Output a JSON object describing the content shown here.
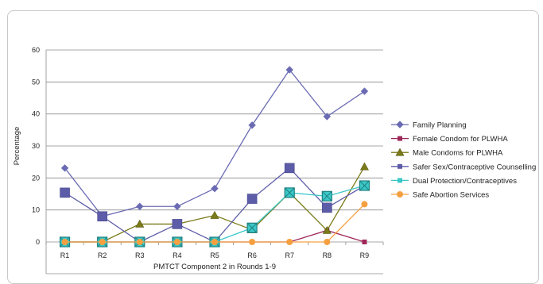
{
  "chart_data": {
    "type": "line",
    "title": "",
    "xlabel": "PMTCT Component 2 in Rounds 1-9",
    "ylabel": "Percentage",
    "ylim": [
      0,
      60
    ],
    "yticks": [
      0,
      10,
      20,
      30,
      40,
      50,
      60
    ],
    "categories": [
      "R1",
      "R2",
      "R3",
      "R4",
      "R5",
      "R6",
      "R7",
      "R8",
      "R9"
    ],
    "grid": "horizontal",
    "legend": "right",
    "series": [
      {
        "name": "Family Planning",
        "color": "#6b6bb4",
        "marker": "diamond",
        "values": [
          23.1,
          8.0,
          11.1,
          11.1,
          16.7,
          36.5,
          53.8,
          39.2,
          47.1
        ]
      },
      {
        "name": "Female Condom for PLWHA",
        "color": "#a0285a",
        "marker": "square-small",
        "values": [
          0,
          0,
          0,
          0,
          0,
          0,
          0,
          3.6,
          0
        ]
      },
      {
        "name": "Male Condoms for PLWHA",
        "color": "#7a7a1a",
        "marker": "triangle",
        "values": [
          0,
          0,
          5.6,
          5.6,
          8.3,
          3.8,
          15.4,
          3.6,
          23.5
        ]
      },
      {
        "name": "Safer Sex/Contraceptive Counselling",
        "color": "#5c5ca8",
        "marker": "square",
        "values": [
          15.4,
          8.0,
          0,
          5.6,
          0,
          13.5,
          23.1,
          10.7,
          17.6
        ]
      },
      {
        "name": "Dual Protection/Contraceptives",
        "color": "#3cc8c8",
        "marker": "square-x",
        "values": [
          0,
          0,
          0,
          0,
          0,
          4.4,
          15.4,
          14.3,
          17.6
        ]
      },
      {
        "name": "Safe Abortion Services",
        "color": "#f5a040",
        "marker": "circle",
        "values": [
          0,
          0,
          0,
          0,
          0,
          0,
          0,
          0,
          11.8
        ]
      }
    ]
  }
}
